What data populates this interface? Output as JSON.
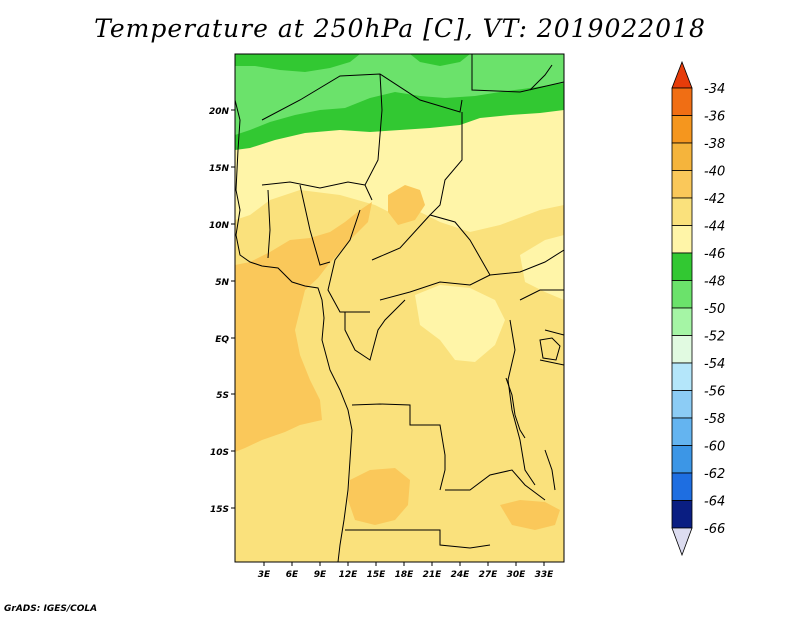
{
  "title": "Temperature at 250hPa [C], VT: 2019022018",
  "footer": "GrADS: IGES/COLA",
  "map": {
    "lon_ticks": [
      "3E",
      "6E",
      "9E",
      "12E",
      "15E",
      "18E",
      "21E",
      "24E",
      "27E",
      "30E",
      "33E"
    ],
    "lat_ticks": [
      "20N",
      "15N",
      "10N",
      "5N",
      "EQ",
      "5S",
      "10S",
      "15S"
    ],
    "fill_colors": {
      "c44": "#32c832",
      "c46": "#6be26b",
      "c48": "#a5f5a5",
      "c40_42": "#fae17c",
      "c42_44": "#fff5a8",
      "c38_40": "#fac85a",
      "c36_38": "#f5b43c"
    }
  },
  "colorbar": {
    "labels": [
      "-34",
      "-36",
      "-38",
      "-40",
      "-42",
      "-44",
      "-46",
      "-48",
      "-50",
      "-52",
      "-54",
      "-56",
      "-58",
      "-60",
      "-62",
      "-64",
      "-66"
    ],
    "colors": [
      "#f06e14",
      "#f5961e",
      "#f5b43c",
      "#fac85a",
      "#fae17c",
      "#fff5a8",
      "#32c832",
      "#6be26b",
      "#a5f5a5",
      "#e1fae1",
      "#b4e6fa",
      "#8cccf5",
      "#64b4f0",
      "#3c96e6",
      "#1e6ee1",
      "#1450c8",
      "#0a1e82"
    ],
    "top_arrow_color": "#e63c0a",
    "bottom_arrow_color": "#dcdcf0"
  }
}
